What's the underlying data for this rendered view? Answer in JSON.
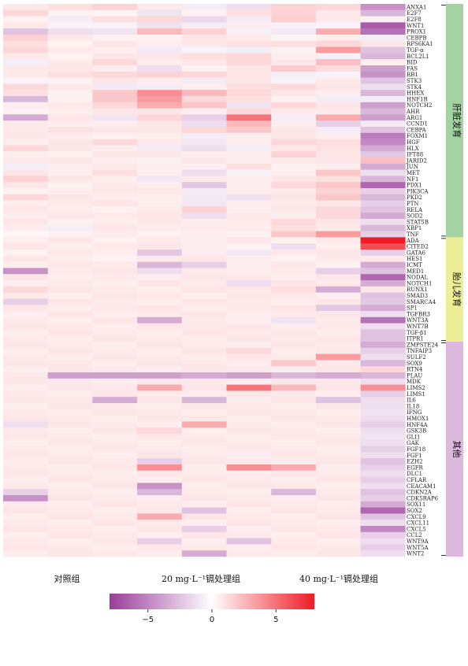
{
  "chart_data": {
    "type": "heatmap",
    "groups": [
      "对照组",
      "",
      "",
      "20 mg·L⁻¹镉处理组",
      "",
      "",
      "40 mg·L⁻¹镉处理组",
      "",
      ""
    ],
    "group_labels": [
      "对照组",
      "20 mg·L⁻¹镉处理组",
      "40 mg·L⁻¹镉处理组"
    ],
    "genes": [
      "ANXA1",
      "E2F7",
      "E2F8",
      "WNT1",
      "PROX1",
      "CEBPB",
      "RPS6KA1",
      "TGF-α",
      "BCL2L1",
      "BID",
      "FAS",
      "RB1",
      "STK3",
      "STK4",
      "HHEX",
      "HNF1B",
      "NOTCH2",
      "AHR",
      "ARG1",
      "CCND1",
      "CEBPA",
      "FOXM1",
      "HGF",
      "HLX",
      "IFT88",
      "JARID2",
      "JUN",
      "MET",
      "NF1",
      "PDX1",
      "PIK3CA",
      "PKD2",
      "PTN",
      "RELA",
      "SOD2",
      "STAT5B",
      "XBP1",
      "TNF",
      "ADA",
      "CITED2",
      "GATA6",
      "HES1",
      "ICMT",
      "MED1",
      "NODAL",
      "NOTCH1",
      "RUNX1",
      "SMAD3",
      "SMARCA4",
      "SP1",
      "TGFBR3",
      "WNT3A",
      "WNT7B",
      "TGF-β1",
      "ITPR1",
      "ZMPSTE24",
      "TNFAIP3",
      "SULF2",
      "SOX9",
      "RTN4",
      "PLAU",
      "MDK",
      "LIMS2",
      "LIMS1",
      "IL6",
      "IL18",
      "IFNG",
      "HMOX1",
      "HNF4A",
      "GSK3B",
      "GLI1",
      "GAK",
      "FGF18",
      "FGF1",
      "EZH2",
      "EGFR",
      "DLC1",
      "CFLAR",
      "CEACAM1",
      "CDKN2A",
      "CDK5RAP6",
      "SOX11",
      "SOX2",
      "CXCL9",
      "CXCL11",
      "CXCL5",
      "CCL2",
      "WNT9A",
      "WNT5A",
      "WNT2"
    ],
    "categories": [
      {
        "name": "肝脏发育",
        "start": 0,
        "end": 37,
        "color": "#a3d3a0"
      },
      {
        "name": "胎儿发育",
        "start": 38,
        "end": 54,
        "color": "#eeee99"
      },
      {
        "name": "其他",
        "start": 55,
        "end": 89,
        "color": "#ddb8dd"
      }
    ],
    "colorbar": {
      "min": -8,
      "max": 8,
      "ticks": [
        -5,
        0,
        5
      ],
      "tick_labels": [
        "−5",
        "0",
        "5"
      ],
      "colors": [
        "#9a3d9a",
        "#ffffff",
        "#ee1c25"
      ]
    },
    "values": [
      [
        0.5,
        0.8,
        1.2,
        0.5,
        -0.5,
        -1.0,
        1.2,
        1.0,
        -4.0
      ],
      [
        1.0,
        0.3,
        0.2,
        -0.8,
        0.3,
        0.8,
        1.2,
        0.5,
        -2.5
      ],
      [
        0.3,
        -0.5,
        0.8,
        1.0,
        -1.2,
        -0.6,
        1.3,
        0.5,
        0.3
      ],
      [
        0.5,
        -0.3,
        -0.3,
        -0.9,
        -0.5,
        0.4,
        -0.4,
        -0.3,
        -6.5
      ],
      [
        -2.0,
        -1.0,
        -0.8,
        2.0,
        1.2,
        -0.4,
        -0.6,
        2.5,
        -5.5
      ],
      [
        1.2,
        0.5,
        0.3,
        0.3,
        0.6,
        0.5,
        0.2,
        0.4,
        -0.5
      ],
      [
        0.8,
        0.3,
        0.6,
        0.4,
        0.6,
        0.7,
        0.8,
        1.0,
        0.6
      ],
      [
        1.0,
        0.5,
        0.4,
        -0.6,
        -0.3,
        -0.5,
        0.3,
        3.0,
        -2.0
      ],
      [
        0.5,
        0.3,
        0.6,
        0.6,
        0.8,
        1.0,
        0.4,
        -0.4,
        -2.5
      ],
      [
        -0.5,
        0.5,
        1.0,
        0.4,
        0.6,
        1.0,
        0.6,
        1.8,
        0.4
      ],
      [
        0.5,
        0.6,
        0.4,
        -1.0,
        0.3,
        0.6,
        1.4,
        0.9,
        -3.5
      ],
      [
        0.5,
        0.8,
        1.0,
        1.2,
        1.0,
        0.6,
        -0.5,
        -0.3,
        -4.0
      ],
      [
        -0.3,
        0.3,
        0.6,
        0.4,
        -0.5,
        0.6,
        -0.3,
        0.5,
        -2.0
      ],
      [
        1.0,
        0.5,
        -0.6,
        -0.5,
        0.4,
        0.8,
        1.0,
        0.6,
        -1.0
      ],
      [
        0.8,
        0.3,
        1.5,
        3.5,
        2.0,
        1.0,
        0.6,
        0.4,
        -2.5
      ],
      [
        -2.5,
        0.3,
        1.5,
        3.0,
        1.0,
        0.8,
        0.3,
        -0.5,
        -0.5
      ],
      [
        0.4,
        0.5,
        1.0,
        2.5,
        1.5,
        -0.8,
        1.0,
        0.6,
        -3.5
      ],
      [
        0.3,
        0.4,
        0.6,
        0.6,
        0.4,
        1.0,
        0.5,
        0.5,
        -2.5
      ],
      [
        -3.0,
        0.6,
        -0.8,
        1.0,
        -1.5,
        4.5,
        -0.5,
        2.5,
        -3.5
      ],
      [
        0.5,
        0.4,
        0.4,
        0.6,
        -1.0,
        2.0,
        0.4,
        -1.5,
        -0.6
      ],
      [
        0.5,
        0.7,
        0.6,
        0.6,
        1.0,
        1.5,
        0.6,
        -0.5,
        -2.0
      ],
      [
        0.6,
        0.4,
        0.3,
        0.4,
        -0.5,
        0.4,
        0.6,
        0.4,
        -5.0
      ],
      [
        0.4,
        0.6,
        1.0,
        0.5,
        -0.7,
        0.4,
        1.0,
        0.8,
        -4.5
      ],
      [
        1.0,
        0.6,
        0.4,
        -0.6,
        -1.0,
        -0.5,
        0.6,
        0.7,
        -3.0
      ],
      [
        0.4,
        0.3,
        0.6,
        0.6,
        0.4,
        0.4,
        1.2,
        0.6,
        -1.8
      ],
      [
        0.5,
        0.6,
        0.4,
        0.3,
        0.6,
        0.4,
        0.5,
        0.6,
        1.8
      ],
      [
        -0.5,
        0.4,
        0.5,
        0.4,
        0.4,
        0.8,
        0.3,
        0.4,
        -3.0
      ],
      [
        0.6,
        0.4,
        0.8,
        0.4,
        -1.0,
        -0.3,
        0.4,
        1.5,
        -1.0
      ],
      [
        1.2,
        0.6,
        0.4,
        -0.7,
        0.5,
        0.4,
        0.6,
        0.8,
        -2.5
      ],
      [
        0.6,
        0.3,
        0.5,
        0.4,
        -1.8,
        0.4,
        1.0,
        1.5,
        -6.0
      ],
      [
        0.3,
        0.4,
        0.6,
        0.5,
        -0.6,
        0.4,
        0.5,
        1.2,
        -1.5
      ],
      [
        1.0,
        0.6,
        0.4,
        0.4,
        -0.6,
        -0.9,
        0.6,
        1.5,
        -2.5
      ],
      [
        0.4,
        0.5,
        0.6,
        0.4,
        -0.7,
        0.4,
        0.5,
        0.6,
        -1.5
      ],
      [
        0.6,
        0.4,
        0.3,
        0.5,
        1.2,
        0.4,
        0.6,
        1.0,
        -2.0
      ],
      [
        0.4,
        0.6,
        0.5,
        0.6,
        -1.0,
        0.5,
        0.4,
        1.0,
        -3.0
      ],
      [
        0.6,
        0.3,
        0.4,
        0.6,
        0.4,
        0.5,
        1.0,
        0.6,
        -1.0
      ],
      [
        0.4,
        -0.5,
        0.6,
        0.4,
        0.5,
        0.4,
        0.8,
        0.5,
        -2.5
      ],
      [
        0.2,
        0.3,
        0.4,
        0.3,
        0.4,
        0.3,
        1.5,
        3.0,
        -1.5
      ],
      [
        0.4,
        0.6,
        0.3,
        0.5,
        0.4,
        0.6,
        0.3,
        0.5,
        8.0
      ],
      [
        0.6,
        0.4,
        0.5,
        0.6,
        0.4,
        0.3,
        -1.0,
        0.4,
        6.0
      ],
      [
        0.3,
        0.5,
        0.4,
        -1.8,
        0.4,
        -0.7,
        0.5,
        0.6,
        -1.5
      ],
      [
        0.6,
        0.4,
        0.3,
        0.5,
        0.6,
        0.4,
        0.3,
        0.5,
        0.5
      ],
      [
        0.4,
        0.6,
        0.5,
        -2.5,
        -1.5,
        0.4,
        0.6,
        0.3,
        -3.0
      ],
      [
        -4.0,
        0.5,
        0.6,
        -1.0,
        0.5,
        0.4,
        0.5,
        -1.5,
        -2.0
      ],
      [
        0.6,
        0.4,
        0.5,
        0.4,
        0.6,
        0.5,
        0.4,
        0.6,
        -6.0
      ],
      [
        0.4,
        0.5,
        0.4,
        0.6,
        0.5,
        -1.0,
        0.6,
        0.5,
        -3.0
      ],
      [
        1.0,
        0.6,
        0.5,
        0.4,
        0.6,
        0.5,
        0.8,
        -3.0,
        0.6
      ],
      [
        0.5,
        0.4,
        0.6,
        0.5,
        0.4,
        0.6,
        0.5,
        0.4,
        -2.0
      ],
      [
        -1.5,
        0.6,
        0.5,
        0.4,
        0.6,
        0.5,
        0.4,
        0.6,
        -1.8
      ],
      [
        0.6,
        0.4,
        0.5,
        0.6,
        0.4,
        0.5,
        0.6,
        -1.8,
        -3.0
      ],
      [
        0.4,
        0.6,
        0.4,
        0.5,
        0.6,
        0.4,
        0.5,
        0.6,
        -1.0
      ],
      [
        0.5,
        0.4,
        0.6,
        -3.0,
        0.5,
        0.4,
        -0.8,
        0.5,
        -5.5
      ],
      [
        0.6,
        0.5,
        0.4,
        0.6,
        0.5,
        0.6,
        0.4,
        0.5,
        -1.0
      ],
      [
        0.4,
        0.6,
        0.5,
        0.4,
        0.6,
        0.5,
        0.6,
        0.4,
        -2.0
      ],
      [
        0.5,
        0.4,
        0.6,
        0.5,
        0.4,
        0.6,
        0.5,
        0.6,
        -2.0
      ],
      [
        0.6,
        0.5,
        0.4,
        0.6,
        0.5,
        0.4,
        0.6,
        0.5,
        -3.0
      ],
      [
        0.4,
        0.6,
        0.5,
        0.4,
        0.6,
        1.0,
        0.4,
        0.5,
        -1.5
      ],
      [
        0.5,
        0.4,
        0.6,
        0.5,
        0.4,
        0.6,
        0.5,
        3.0,
        -1.0
      ],
      [
        0.6,
        0.5,
        0.4,
        0.6,
        0.5,
        0.4,
        1.5,
        0.5,
        -2.5
      ],
      [
        0.4,
        0.6,
        0.5,
        0.4,
        0.6,
        0.5,
        0.4,
        0.6,
        1.0
      ],
      [
        0.5,
        -3.5,
        -3.5,
        -3.5,
        -3.0,
        -3.5,
        -2.5,
        -3.0,
        -2.5
      ],
      [
        0.6,
        0.5,
        0.4,
        0.6,
        0.5,
        0.4,
        0.6,
        0.5,
        -1.0
      ],
      [
        0.4,
        0.6,
        0.5,
        2.5,
        0.6,
        4.5,
        2.0,
        0.6,
        3.5
      ],
      [
        0.5,
        0.4,
        0.6,
        0.5,
        0.4,
        0.6,
        0.5,
        0.4,
        -1.5
      ],
      [
        0.6,
        0.5,
        -3.0,
        0.6,
        -2.5,
        0.4,
        0.6,
        -2.0,
        -1.0
      ],
      [
        0.4,
        0.6,
        0.5,
        0.4,
        0.6,
        0.5,
        0.4,
        0.6,
        -1.0
      ],
      [
        0.5,
        0.4,
        0.6,
        0.5,
        0.4,
        0.6,
        0.5,
        0.4,
        -0.8
      ],
      [
        0.6,
        0.5,
        0.4,
        0.6,
        0.5,
        0.4,
        0.6,
        0.5,
        -1.0
      ],
      [
        -1.0,
        0.6,
        0.5,
        0.4,
        2.5,
        0.5,
        0.4,
        0.6,
        -1.5
      ],
      [
        0.5,
        0.4,
        0.6,
        1.0,
        0.4,
        0.6,
        0.5,
        0.4,
        -1.0
      ],
      [
        0.6,
        0.5,
        0.4,
        0.6,
        0.5,
        0.4,
        0.6,
        0.5,
        -0.8
      ],
      [
        0.4,
        0.6,
        0.5,
        0.4,
        0.6,
        0.5,
        0.4,
        0.6,
        -1.0
      ],
      [
        0.5,
        0.4,
        0.6,
        0.5,
        0.4,
        0.6,
        0.5,
        0.4,
        -1.5
      ],
      [
        0.6,
        0.5,
        0.4,
        0.6,
        0.5,
        0.4,
        0.6,
        0.5,
        -1.0
      ],
      [
        0.4,
        0.6,
        0.5,
        -1.5,
        0.6,
        0.5,
        0.4,
        0.6,
        -2.0
      ],
      [
        0.5,
        0.4,
        0.6,
        3.5,
        0.4,
        3.5,
        2.5,
        0.4,
        -1.5
      ],
      [
        0.6,
        0.5,
        0.4,
        0.6,
        0.5,
        0.4,
        0.6,
        0.5,
        -1.0
      ],
      [
        0.4,
        0.6,
        0.5,
        0.4,
        0.6,
        0.5,
        0.4,
        0.6,
        -1.5
      ],
      [
        0.5,
        0.4,
        0.6,
        -4.0,
        0.4,
        0.6,
        0.5,
        0.4,
        -1.0
      ],
      [
        -1.5,
        0.5,
        0.4,
        -2.5,
        0.5,
        0.4,
        -2.5,
        0.5,
        -2.0
      ],
      [
        -4.0,
        0.6,
        0.5,
        0.4,
        0.6,
        0.5,
        0.4,
        0.6,
        -1.5
      ],
      [
        0.5,
        0.4,
        0.6,
        0.5,
        0.4,
        0.6,
        0.5,
        0.4,
        -3.0
      ],
      [
        0.6,
        0.5,
        0.4,
        0.6,
        -2.0,
        0.4,
        0.6,
        0.5,
        -6.0
      ],
      [
        0.4,
        0.6,
        0.5,
        2.5,
        0.6,
        0.5,
        0.4,
        0.6,
        -2.0
      ],
      [
        0.5,
        0.4,
        0.6,
        0.5,
        0.4,
        0.6,
        0.5,
        0.4,
        -1.0
      ],
      [
        0.6,
        0.5,
        0.4,
        0.6,
        -1.5,
        0.4,
        0.6,
        0.5,
        -4.5
      ],
      [
        0.4,
        0.6,
        0.5,
        0.4,
        0.6,
        0.5,
        0.4,
        0.6,
        -1.5
      ],
      [
        0.5,
        0.4,
        0.6,
        -1.5,
        0.4,
        -2.0,
        0.5,
        0.4,
        -1.0
      ],
      [
        0.6,
        0.5,
        0.4,
        0.6,
        0.5,
        0.4,
        0.6,
        0.5,
        -1.5
      ],
      [
        0.4,
        0.6,
        0.5,
        0.4,
        -3.0,
        0.5,
        0.4,
        0.6,
        -1.0
      ]
    ]
  }
}
